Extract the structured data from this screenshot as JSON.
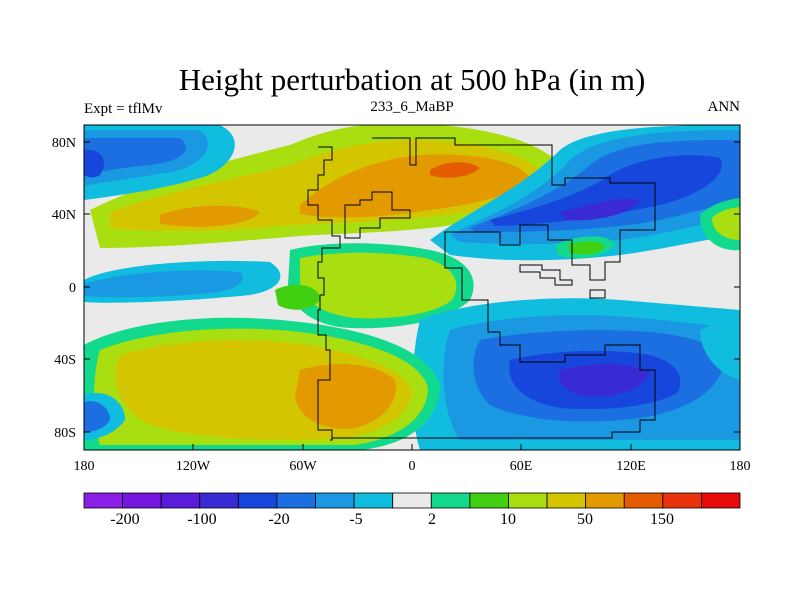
{
  "title": "Height perturbation at 500 hPa (in m)",
  "left_string": "Expt = tflMv",
  "center_string": "233_6_MaBP",
  "right_string": "ANN",
  "lat_ticks": [
    "80N",
    "40N",
    "0",
    "40S",
    "80S"
  ],
  "lon_ticks": [
    "180",
    "120W",
    "60W",
    "0",
    "60E",
    "120E",
    "180"
  ],
  "colorbar": {
    "colors": [
      "#8a1ee6",
      "#7516e0",
      "#5a1cd8",
      "#3a2ad6",
      "#1746dc",
      "#1b6fe0",
      "#1b98e2",
      "#11bddf",
      "#eaeaea",
      "#13d98c",
      "#40d011",
      "#a9de10",
      "#d3c600",
      "#e29a00",
      "#e45b00",
      "#e8330d",
      "#e60a0a"
    ],
    "labels": [
      "-200",
      "-100",
      "-20",
      "-5",
      "2",
      "10",
      "50",
      "150"
    ]
  },
  "chart_data": {
    "type": "heatmap",
    "variable": "Height perturbation at 500 hPa",
    "units": "m",
    "xlim": [
      -180,
      180
    ],
    "ylim": [
      -90,
      90
    ],
    "features": [
      {
        "lon": -100,
        "lat": 38,
        "value": 60
      },
      {
        "lon": 20,
        "lat": 62,
        "value": 120
      },
      {
        "lon": -30,
        "lat": -62,
        "value": 70
      },
      {
        "lon": -120,
        "lat": -40,
        "value": 30
      },
      {
        "lon": -30,
        "lat": 8,
        "value": 12
      },
      {
        "lon": 90,
        "lat": -55,
        "value": -60
      },
      {
        "lon": 140,
        "lat": 60,
        "value": -50
      },
      {
        "lon": -175,
        "lat": 65,
        "value": -40
      },
      {
        "lon": 170,
        "lat": 35,
        "value": 10
      }
    ]
  }
}
